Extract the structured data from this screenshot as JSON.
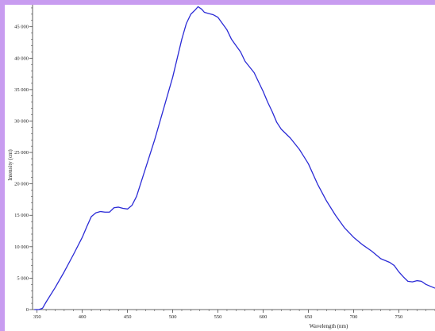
{
  "chart_data": {
    "type": "line",
    "title": "",
    "xlabel": "Wavelength (nm)",
    "ylabel": "Intensity (cnt)",
    "xlim": [
      345,
      790
    ],
    "ylim": [
      0,
      48500
    ],
    "x_ticks": [
      350,
      400,
      450,
      500,
      550,
      600,
      650,
      700,
      750
    ],
    "x_tick_labels": [
      "350",
      "400",
      "450",
      "500",
      "550",
      "600",
      "650",
      "700",
      "750"
    ],
    "y_ticks": [
      0,
      5000,
      10000,
      15000,
      20000,
      25000,
      30000,
      35000,
      40000,
      45000
    ],
    "y_tick_labels": [
      "0",
      "5 000",
      "10 000",
      "15 000",
      "20 000",
      "25 000",
      "30 000",
      "35 000",
      "40 000",
      "45 000"
    ],
    "grid": false,
    "line_color": "#2b2bd6",
    "series": [
      {
        "x": [
          347,
          352,
          356,
          360,
          370,
          380,
          390,
          400,
          405,
          410,
          415,
          420,
          425,
          430,
          435,
          440,
          445,
          450,
          455,
          460,
          470,
          480,
          490,
          500,
          505,
          510,
          515,
          520,
          525,
          528,
          532,
          535,
          540,
          545,
          550,
          555,
          560,
          565,
          570,
          575,
          580,
          590,
          600,
          605,
          610,
          615,
          620,
          630,
          640,
          650,
          660,
          670,
          680,
          690,
          700,
          710,
          720,
          730,
          740,
          745,
          750,
          755,
          760,
          765,
          770,
          775,
          780,
          785,
          790
        ],
        "y": [
          0,
          0,
          200,
          1200,
          3500,
          6000,
          8700,
          11500,
          13200,
          14800,
          15400,
          15600,
          15500,
          15500,
          16200,
          16300,
          16100,
          16000,
          16600,
          18000,
          22500,
          27000,
          32000,
          37000,
          40000,
          43000,
          45500,
          47000,
          47700,
          48200,
          47800,
          47300,
          47100,
          46900,
          46500,
          45500,
          44500,
          43000,
          42000,
          41000,
          39500,
          37700,
          34700,
          33000,
          31500,
          29800,
          28700,
          27300,
          25500,
          23200,
          20000,
          17300,
          15000,
          13000,
          11500,
          10300,
          9300,
          8100,
          7500,
          7000,
          6000,
          5200,
          4500,
          4400,
          4600,
          4500,
          4000,
          3700,
          3400
        ]
      }
    ]
  }
}
